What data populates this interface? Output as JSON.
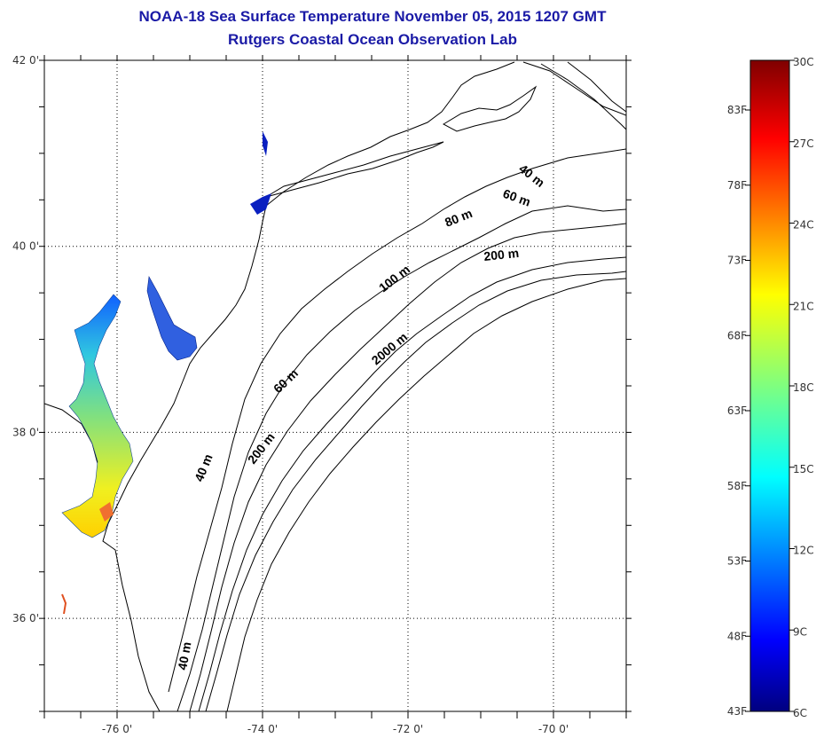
{
  "header": {
    "title": "NOAA-18 Sea Surface Temperature November 05, 2015 1207 GMT",
    "subtitle": "Rutgers Coastal Ocean Observation Lab"
  },
  "map": {
    "lat_labels": [
      {
        "value": 42,
        "label": "42 0'"
      },
      {
        "value": 40,
        "label": "40 0'"
      },
      {
        "value": 38,
        "label": "38 0'"
      },
      {
        "value": 36,
        "label": "36 0'"
      }
    ],
    "lon_labels": [
      {
        "value": -76,
        "label": "-76 0'"
      },
      {
        "value": -74,
        "label": "-74 0'"
      },
      {
        "value": -72,
        "label": "-72 0'"
      },
      {
        "value": -70,
        "label": "-70 0'"
      }
    ],
    "lon_range": [
      -77,
      -69
    ],
    "lat_range": [
      35,
      42
    ],
    "gridlines": "dotted",
    "contour_labels": [
      "40 m",
      "60 m",
      "80 m",
      "200 m",
      "100 m",
      "2000 m",
      "60 m",
      "200 m",
      "40 m",
      "40 m"
    ]
  },
  "colorbar": {
    "celsius_labels": [
      "30C",
      "27C",
      "24C",
      "21C",
      "18C",
      "15C",
      "12C",
      "9C",
      "6C"
    ],
    "fahrenheit_labels": [
      "83F",
      "78F",
      "73F",
      "68F",
      "63F",
      "58F",
      "53F",
      "48F",
      "43F"
    ],
    "colors": [
      "#00007f",
      "#0000ff",
      "#007fff",
      "#00ffff",
      "#7fff7f",
      "#ffff00",
      "#ff7f00",
      "#ff0000",
      "#7f0000"
    ]
  }
}
